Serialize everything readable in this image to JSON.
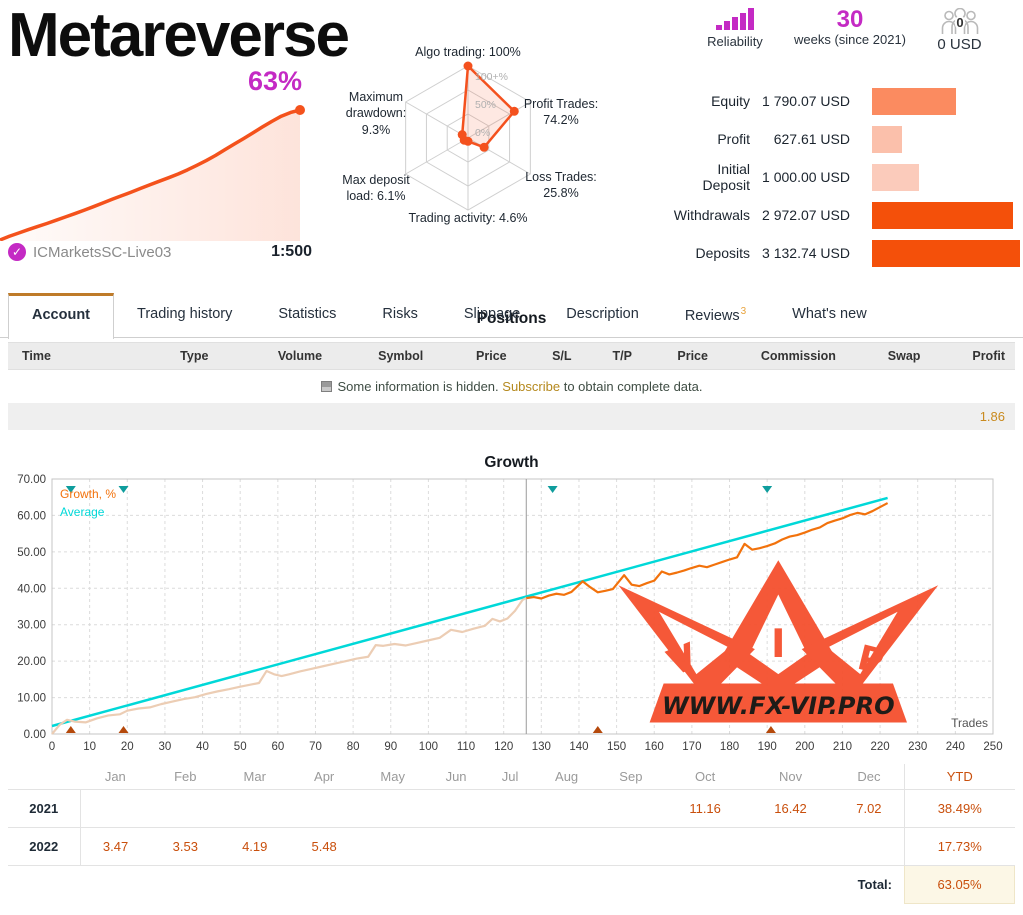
{
  "header": {
    "title": "Metareverse",
    "growth_badge": "63%",
    "account_name": "ICMarketsSC-Live03",
    "leverage": "1:500",
    "check_icon": "✓",
    "stats": {
      "reliability_label": "Reliability",
      "weeks_number": "30",
      "weeks_label": "weeks (since 2021)",
      "money_label": "0 USD",
      "money_icon_count": "0"
    },
    "radar_labels": {
      "algo": "Algo trading: 100%",
      "profit": "Profit Trades:\n74.2%",
      "loss": "Loss Trades:\n25.8%",
      "activity": "Trading activity: 4.6%",
      "drawdown": "Maximum\ndrawdown:\n9.3%",
      "deposit_load": "Max deposit\nload: 6.1%"
    },
    "summary_rows": [
      {
        "label": "Equity",
        "value": "1 790.07 USD",
        "bar_pct": 57,
        "bar_color": "#fb8b60"
      },
      {
        "label": "Profit",
        "value": "627.61 USD",
        "bar_pct": 20,
        "bar_color": "#fbc0ab"
      },
      {
        "label": "Initial Deposit",
        "value": "1 000.00 USD",
        "bar_pct": 32,
        "bar_color": "#fbcbbb"
      },
      {
        "label": "Withdrawals",
        "value": "2 972.07 USD",
        "bar_pct": 95,
        "bar_color": "#f4500a"
      },
      {
        "label": "Deposits",
        "value": "3 132.74 USD",
        "bar_pct": 100,
        "bar_color": "#f4500a"
      }
    ]
  },
  "tabs": {
    "items": [
      "Account",
      "Trading history",
      "Statistics",
      "Risks",
      "Slippage",
      "Description",
      "Reviews",
      "What's new"
    ],
    "active_index": 0,
    "reviews_badge": "3",
    "reviews_index": 6
  },
  "positions": {
    "title": "Positions",
    "columns": [
      "Time",
      "Type",
      "Volume",
      "Symbol",
      "Price",
      "S/L",
      "T/P",
      "Price",
      "Commission",
      "Swap",
      "Profit"
    ],
    "hidden_message_1": "Some information is hidden.",
    "subscribe_label": "Subscribe",
    "hidden_message_2": "to obtain complete data.",
    "total_profit": "1.86"
  },
  "growth_section": {
    "title": "Growth"
  },
  "chart_data": [
    {
      "name": "mini_growth",
      "type": "area",
      "title": "account growth sparkline",
      "final_value_pct": 63,
      "values": [
        0,
        1.8,
        3.4,
        5,
        6.5,
        8,
        9.6,
        11.2,
        12.8,
        14.5,
        16.2,
        18,
        19.8,
        21.5,
        23.2,
        25,
        26.8,
        28.5,
        30.2,
        32,
        34,
        36.2,
        38.5,
        41,
        43.8,
        46.5,
        49.2,
        52,
        54.8,
        57.5,
        60,
        61.8,
        63
      ],
      "line_color": "#f4521c"
    },
    {
      "name": "indicators_radar",
      "type": "radar",
      "axes": [
        {
          "label": "Algo trading",
          "value": 100
        },
        {
          "label": "Profit Trades",
          "value": 74.2
        },
        {
          "label": "Loss Trades",
          "value": 25.8
        },
        {
          "label": "Trading activity",
          "value": 4.6
        },
        {
          "label": "Max deposit load",
          "value": 6.1
        },
        {
          "label": "Maximum drawdown",
          "value": 9.3
        }
      ],
      "ring_labels": [
        "100+%",
        "50%",
        "0%"
      ],
      "line_color": "#f4511e"
    },
    {
      "name": "growth_main",
      "type": "line",
      "title": "Growth",
      "legend": [
        "Growth, %",
        "Average"
      ],
      "x_label": "Trades",
      "xlim": [
        0,
        250
      ],
      "x_step": 10,
      "ylim": [
        0,
        70
      ],
      "y_step": 10,
      "year_split_trade": 126,
      "average": {
        "from": [
          0,
          2.2
        ],
        "to": [
          222,
          64.8
        ]
      },
      "deposit_marks": [
        5,
        19,
        133,
        190
      ],
      "withdrawal_marks": [
        5,
        19,
        145,
        191
      ],
      "points": [
        [
          0,
          0
        ],
        [
          2,
          2.5
        ],
        [
          4,
          3.9
        ],
        [
          6,
          3.4
        ],
        [
          9,
          3.2
        ],
        [
          12,
          4.3
        ],
        [
          15,
          5.1
        ],
        [
          18,
          5.4
        ],
        [
          20,
          6.4
        ],
        [
          23,
          7.0
        ],
        [
          26,
          7.3
        ],
        [
          29,
          8.2
        ],
        [
          32,
          8.9
        ],
        [
          35,
          9.6
        ],
        [
          38,
          10.1
        ],
        [
          41,
          11.0
        ],
        [
          44,
          11.7
        ],
        [
          47,
          12.3
        ],
        [
          50,
          13.0
        ],
        [
          53,
          13.6
        ],
        [
          55,
          14.0
        ],
        [
          57,
          17.3
        ],
        [
          59,
          16.4
        ],
        [
          61,
          15.9
        ],
        [
          63,
          16.4
        ],
        [
          66,
          17.2
        ],
        [
          69,
          17.9
        ],
        [
          72,
          18.6
        ],
        [
          75,
          19.3
        ],
        [
          78,
          20.0
        ],
        [
          81,
          20.7
        ],
        [
          84,
          21.2
        ],
        [
          86,
          24.4
        ],
        [
          88,
          24.2
        ],
        [
          91,
          24.7
        ],
        [
          94,
          24.3
        ],
        [
          97,
          25.0
        ],
        [
          100,
          25.7
        ],
        [
          103,
          26.4
        ],
        [
          106,
          28.6
        ],
        [
          109,
          28.0
        ],
        [
          112,
          28.9
        ],
        [
          115,
          29.7
        ],
        [
          117,
          31.6
        ],
        [
          119,
          30.9
        ],
        [
          121,
          31.7
        ],
        [
          123,
          33.8
        ],
        [
          125,
          36.8
        ],
        [
          126,
          37.3
        ],
        [
          128,
          37.6
        ],
        [
          130,
          37.2
        ],
        [
          132,
          38.0
        ],
        [
          134,
          38.5
        ],
        [
          136,
          38.2
        ],
        [
          138,
          39.0
        ],
        [
          141,
          41.9
        ],
        [
          143,
          40.3
        ],
        [
          145,
          38.9
        ],
        [
          147,
          39.3
        ],
        [
          149,
          39.8
        ],
        [
          152,
          43.6
        ],
        [
          154,
          41.0
        ],
        [
          156,
          40.6
        ],
        [
          158,
          41.4
        ],
        [
          160,
          42.1
        ],
        [
          162,
          44.6
        ],
        [
          164,
          43.8
        ],
        [
          166,
          44.3
        ],
        [
          168,
          44.9
        ],
        [
          170,
          45.6
        ],
        [
          172,
          46.2
        ],
        [
          174,
          45.8
        ],
        [
          176,
          46.5
        ],
        [
          178,
          47.2
        ],
        [
          180,
          47.9
        ],
        [
          182,
          48.5
        ],
        [
          184,
          52.2
        ],
        [
          186,
          50.6
        ],
        [
          188,
          51.0
        ],
        [
          190,
          51.6
        ],
        [
          192,
          52.3
        ],
        [
          194,
          53.4
        ],
        [
          196,
          54.2
        ],
        [
          198,
          54.6
        ],
        [
          200,
          55.3
        ],
        [
          202,
          56.1
        ],
        [
          204,
          56.7
        ],
        [
          206,
          57.9
        ],
        [
          208,
          58.6
        ],
        [
          210,
          59.2
        ],
        [
          212,
          60.1
        ],
        [
          214,
          60.7
        ],
        [
          216,
          60.3
        ],
        [
          218,
          61.2
        ],
        [
          220,
          62.3
        ],
        [
          222,
          63.4
        ]
      ],
      "colors": {
        "line_2022": "#f2720c",
        "line_2021_faded": "#eccdb4",
        "average": "#00d8d8",
        "deposit_mark": "#0f9d9d",
        "withdrawal_mark": "#b5490b"
      },
      "watermark": {
        "text": "WWW.FX-VIP.PRO",
        "letters": [
          "V",
          "I",
          "P"
        ],
        "color": "#f5502e"
      }
    },
    {
      "name": "monthly_returns",
      "type": "table",
      "columns": [
        "Jan",
        "Feb",
        "Mar",
        "Apr",
        "May",
        "Jun",
        "Jul",
        "Aug",
        "Sep",
        "Oct",
        "Nov",
        "Dec",
        "YTD"
      ],
      "rows": [
        {
          "year": "2021",
          "values": [
            "",
            "",
            "",
            "",
            "",
            "",
            "",
            "",
            "",
            "11.16",
            "16.42",
            "7.02"
          ],
          "ytd": "38.49%"
        },
        {
          "year": "2022",
          "values": [
            "3.47",
            "3.53",
            "4.19",
            "5.48",
            "",
            "",
            "",
            "",
            "",
            "",
            "",
            ""
          ],
          "ytd": "17.73%"
        }
      ],
      "total_label": "Total:",
      "total_ytd": "63.05%"
    }
  ]
}
